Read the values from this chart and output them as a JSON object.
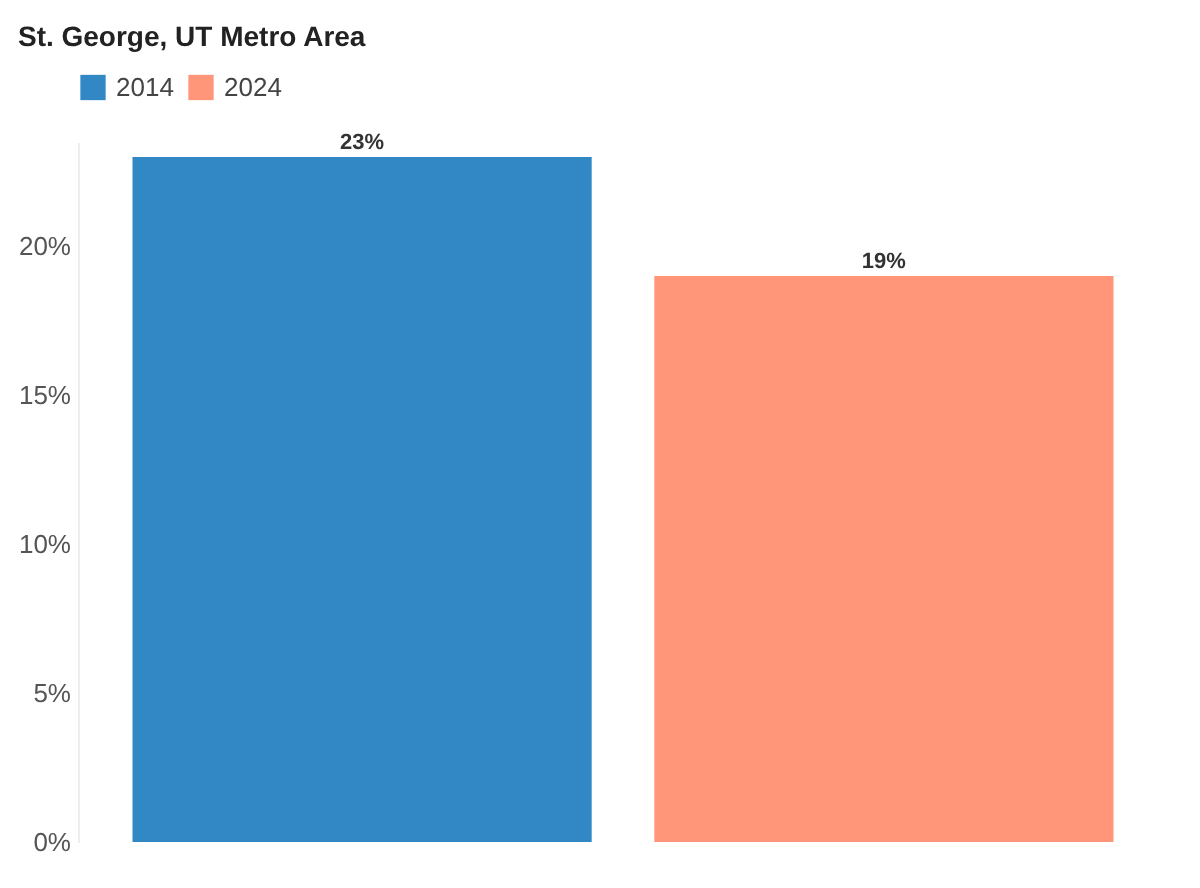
{
  "chart_data": {
    "type": "bar",
    "title": "St. George, UT Metro Area",
    "categories": [
      null
    ],
    "series": [
      {
        "name": "2014",
        "color": "#3288c5",
        "values": [
          23
        ],
        "value_labels": [
          "23%"
        ]
      },
      {
        "name": "2024",
        "color": "#ff967a",
        "values": [
          19
        ],
        "value_labels": [
          "19%"
        ]
      }
    ],
    "ylim": [
      0,
      23.5
    ],
    "yticks": [
      {
        "value": 0,
        "label": "0%"
      },
      {
        "value": 5,
        "label": "5%"
      },
      {
        "value": 10,
        "label": "10%"
      },
      {
        "value": 15,
        "label": "15%"
      },
      {
        "value": 20,
        "label": "20%"
      }
    ],
    "grid": false,
    "legend": "top left",
    "tick_labels": "y"
  }
}
